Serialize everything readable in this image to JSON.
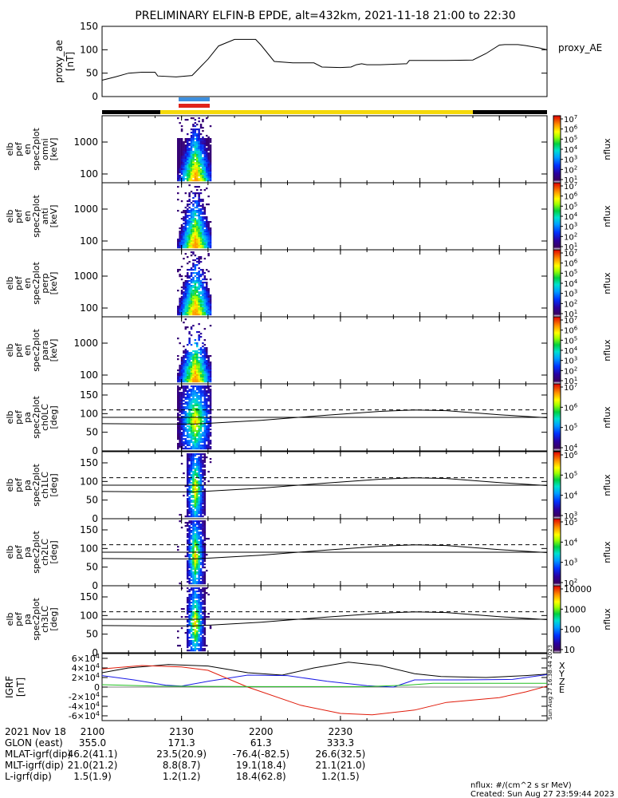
{
  "title": "PRELIMINARY ELFIN-B EPDE, alt=432km, 2021-11-18 21:00 to 22:30",
  "footer": {
    "units": "nflux: #/(cm^2 s sr MeV)",
    "created": "Created: Sun Aug 27 23:59:44 2023",
    "vertical_stamp": "Sun Aug 27 16:38:44 2023"
  },
  "legend_colors": {
    "science_zone": "#f5d90a",
    "no_data": "#000000",
    "marker_top": "#3c8fe0",
    "marker_bottom": "#e0231a",
    "igrf_x": "#000000",
    "igrf_y": "#1a1ae6",
    "igrf_z": "#e01b0a",
    "igrf_e": "#20c020"
  },
  "bottom_table": {
    "rows": [
      {
        "label": "2021 Nov 18",
        "values": [
          "2100",
          "2130",
          "2200",
          "2230"
        ]
      },
      {
        "label": "GLON (east)",
        "values": [
          "355.0",
          "171.3",
          "61.3",
          "333.3"
        ]
      },
      {
        "label": "MLAT-igrf(dip)",
        "values": [
          "46.2(41.1)",
          "23.5(20.9)",
          "-76.4(-82.5)",
          "26.6(32.5)"
        ]
      },
      {
        "label": "MLT-igrf(dip)",
        "values": [
          "21.0(21.2)",
          "8.8(8.7)",
          "19.1(18.4)",
          "21.1(21.0)"
        ]
      },
      {
        "label": "L-igrf(dip)",
        "values": [
          "1.5(1.9)",
          "1.2(1.2)",
          "18.4(62.8)",
          "1.2(1.5)"
        ]
      }
    ]
  },
  "chart_data": [
    {
      "type": "line",
      "panel": "proxy_ae",
      "ylabel": "proxy_ae [nT]",
      "legend": "proxy_AE",
      "ylim": [
        0,
        150
      ],
      "yticks": [
        "150",
        "100",
        "50",
        "0"
      ],
      "x_minutes": [
        0,
        5,
        10,
        15,
        20,
        21,
        28,
        34,
        40,
        44,
        50,
        54,
        58,
        60,
        65,
        72,
        80,
        83,
        90,
        94,
        96,
        98,
        100,
        105,
        110,
        115,
        116,
        118,
        120,
        130,
        140,
        145,
        150,
        152,
        157,
        160,
        165,
        168
      ],
      "values": [
        35,
        42,
        50,
        52,
        52,
        44,
        42,
        45,
        80,
        108,
        122,
        122,
        122,
        110,
        75,
        72,
        72,
        63,
        62,
        63,
        68,
        70,
        68,
        68,
        69,
        70,
        77,
        77,
        77,
        77,
        78,
        92,
        110,
        111,
        111,
        109,
        104,
        100
      ]
    },
    {
      "type": "heatmap",
      "panel": "spec2plot_omni",
      "ylabel": "elb pef en spec2plot omni [keV]",
      "yticks": [
        "1000",
        "100"
      ],
      "colorbar_label": "nflux",
      "colorbar_ticks": [
        "10^1",
        "10^2",
        "10^3",
        "10^4",
        "10^5",
        "10^6",
        "10^7"
      ]
    },
    {
      "type": "heatmap",
      "panel": "spec2plot_anti",
      "ylabel": "elb pef en spec2plot anti [keV]",
      "yticks": [
        "1000",
        "100"
      ],
      "colorbar_label": "nflux",
      "colorbar_ticks": [
        "10^1",
        "10^2",
        "10^3",
        "10^4",
        "10^5",
        "10^6",
        "10^7"
      ]
    },
    {
      "type": "heatmap",
      "panel": "spec2plot_perp",
      "ylabel": "elb pef en spec2plot perp [keV]",
      "yticks": [
        "1000",
        "100"
      ],
      "colorbar_label": "nflux",
      "colorbar_ticks": [
        "10^1",
        "10^2",
        "10^3",
        "10^4",
        "10^5",
        "10^6",
        "10^7"
      ]
    },
    {
      "type": "heatmap",
      "panel": "spec2plot_para",
      "ylabel": "elb pef en spec2plot para [keV]",
      "yticks": [
        "1000",
        "100"
      ],
      "colorbar_label": "nflux",
      "colorbar_ticks": [
        "10^1",
        "10^2",
        "10^3",
        "10^4",
        "10^5",
        "10^6",
        "10^7"
      ]
    },
    {
      "type": "heatmap",
      "panel": "spec2plot_ch0LC",
      "ylabel": "elb pef pa spec2plot ch0LC [deg]",
      "ylim": [
        0,
        180
      ],
      "yticks": [
        "150",
        "100",
        "50",
        "0"
      ],
      "colorbar_label": "nflux",
      "colorbar_ticks": [
        "10^4",
        "10^5",
        "10^6",
        "10^7"
      ]
    },
    {
      "type": "heatmap",
      "panel": "spec2plot_ch1LC",
      "ylabel": "elb pef pa spec2plot ch1LC [deg]",
      "ylim": [
        0,
        180
      ],
      "yticks": [
        "150",
        "100",
        "50",
        "0"
      ],
      "colorbar_label": "nflux",
      "colorbar_ticks": [
        "10^3",
        "10^4",
        "10^5",
        "10^6"
      ]
    },
    {
      "type": "heatmap",
      "panel": "spec2plot_ch2LC",
      "ylabel": "elb pef pa spec2plot ch2LC [deg]",
      "ylim": [
        0,
        180
      ],
      "yticks": [
        "150",
        "100",
        "50",
        "0"
      ],
      "colorbar_label": "nflux",
      "colorbar_ticks": [
        "10^2",
        "10^3",
        "10^4",
        "10^5"
      ]
    },
    {
      "type": "heatmap",
      "panel": "spec2plot_ch3LC",
      "ylabel": "elb pef pa spec2plot ch3LC [deg]",
      "ylim": [
        0,
        180
      ],
      "yticks": [
        "150",
        "100",
        "50",
        "0"
      ],
      "colorbar_label": "nflux",
      "colorbar_ticks": [
        "10",
        "100",
        "1000",
        "10000"
      ]
    },
    {
      "type": "line",
      "panel": "igrf",
      "ylabel": "IGRF [nT]",
      "ylim": [
        -70000,
        70000
      ],
      "yticks": [
        "6×10^4",
        "4×10^4",
        "2×10^4",
        "0",
        "-2×10^4",
        "-4×10^4",
        "-6×10^4"
      ],
      "legend": [
        "X",
        "Y",
        "Z",
        "E"
      ]
    }
  ]
}
